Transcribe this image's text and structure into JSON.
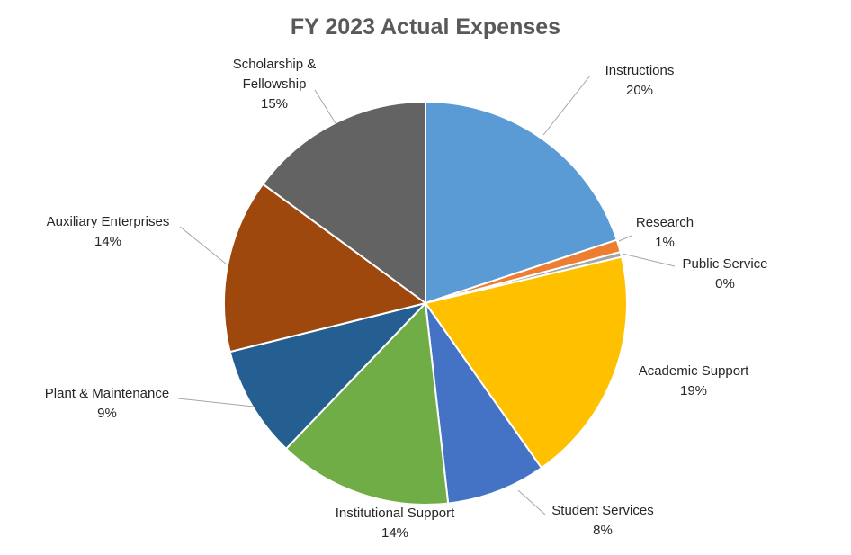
{
  "chart_data": {
    "type": "pie",
    "title": "FY 2023 Actual Expenses",
    "categories": [
      "Instructions",
      "Research",
      "Public Service",
      "Academic Support",
      "Student Services",
      "Institutional Support",
      "Plant & Maintenance",
      "Auxiliary Enterprises",
      "Scholarship & Fellowship"
    ],
    "values": [
      20,
      1,
      0.4,
      19,
      8,
      14,
      9,
      14,
      15
    ],
    "value_labels": [
      "20%",
      "1%",
      "0%",
      "19%",
      "8%",
      "14%",
      "9%",
      "14%",
      "15%"
    ],
    "colors": [
      "#5b9bd5",
      "#ed7d31",
      "#a5a5a5",
      "#ffc000",
      "#4472c4",
      "#70ad47",
      "#255e91",
      "#9e480e",
      "#636363"
    ]
  }
}
